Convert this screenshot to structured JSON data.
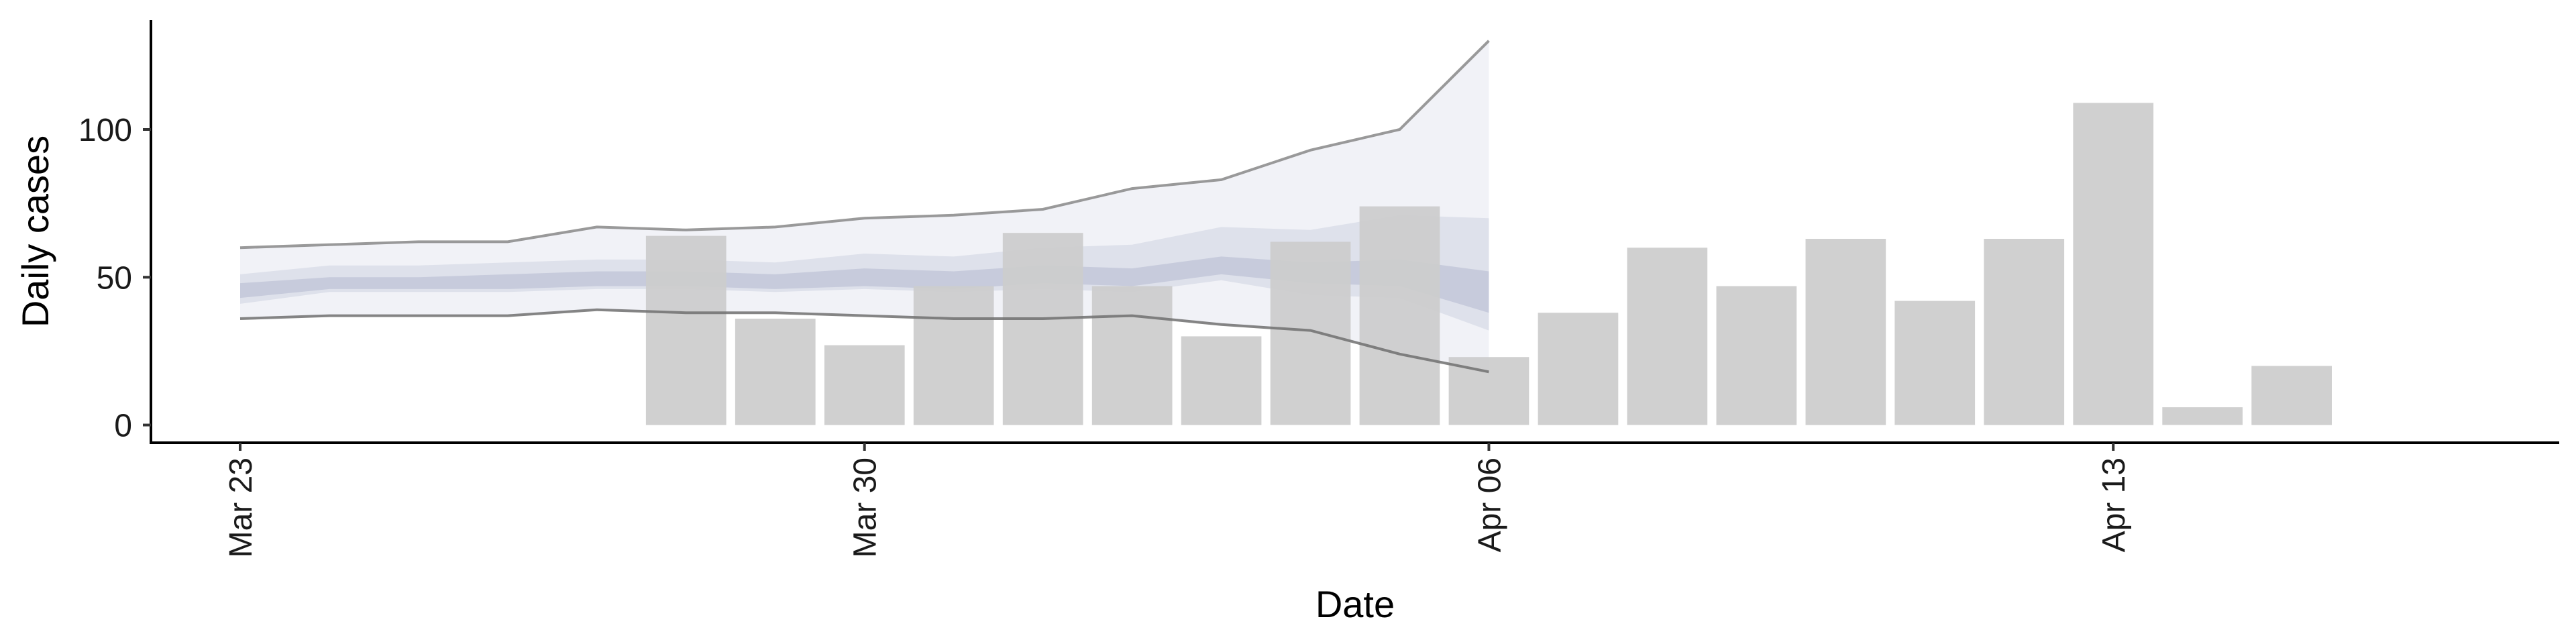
{
  "chart_data": {
    "type": "bar",
    "xlabel": "Date",
    "ylabel": "Daily cases",
    "grid": false,
    "legend": "none",
    "xlim": [
      "2020-03-22",
      "2020-04-18"
    ],
    "ylim": [
      -6,
      137
    ],
    "x_ticks": [
      {
        "date": "2020-03-23",
        "label": "Mar 23"
      },
      {
        "date": "2020-03-30",
        "label": "Mar 30"
      },
      {
        "date": "2020-04-06",
        "label": "Apr 06"
      },
      {
        "date": "2020-04-13",
        "label": "Apr 13"
      }
    ],
    "y_ticks": [
      {
        "value": 0,
        "label": "0"
      },
      {
        "value": 50,
        "label": "50"
      },
      {
        "value": 100,
        "label": "100"
      }
    ],
    "bars": {
      "color": "#cccccc",
      "points": [
        {
          "date": "2020-03-28",
          "value": 64
        },
        {
          "date": "2020-03-29",
          "value": 36
        },
        {
          "date": "2020-03-30",
          "value": 27
        },
        {
          "date": "2020-03-31",
          "value": 47
        },
        {
          "date": "2020-04-01",
          "value": 65
        },
        {
          "date": "2020-04-02",
          "value": 47
        },
        {
          "date": "2020-04-03",
          "value": 30
        },
        {
          "date": "2020-04-04",
          "value": 62
        },
        {
          "date": "2020-04-05",
          "value": 74
        },
        {
          "date": "2020-04-06",
          "value": 23
        },
        {
          "date": "2020-04-07",
          "value": 38
        },
        {
          "date": "2020-04-08",
          "value": 60
        },
        {
          "date": "2020-04-09",
          "value": 47
        },
        {
          "date": "2020-04-10",
          "value": 63
        },
        {
          "date": "2020-04-11",
          "value": 42
        },
        {
          "date": "2020-04-12",
          "value": 63
        },
        {
          "date": "2020-04-13",
          "value": 109
        },
        {
          "date": "2020-04-14",
          "value": 6
        },
        {
          "date": "2020-04-15",
          "value": 20
        }
      ]
    },
    "estimate": {
      "dates": [
        "2020-03-23",
        "2020-03-24",
        "2020-03-25",
        "2020-03-26",
        "2020-03-27",
        "2020-03-28",
        "2020-03-29",
        "2020-03-30",
        "2020-03-31",
        "2020-04-01",
        "2020-04-02",
        "2020-04-03",
        "2020-04-04",
        "2020-04-05",
        "2020-04-06"
      ],
      "outer_upper": [
        60,
        61,
        62,
        62,
        67,
        66,
        67,
        70,
        71,
        73,
        80,
        83,
        93,
        100,
        130
      ],
      "outer_lower": [
        36,
        37,
        37,
        37,
        39,
        38,
        38,
        37,
        36,
        36,
        37,
        34,
        32,
        24,
        18
      ],
      "mid_upper": [
        51,
        54,
        54,
        55,
        56,
        56,
        55,
        58,
        57,
        60,
        61,
        67,
        66,
        71,
        70
      ],
      "mid_lower": [
        41,
        45,
        45,
        45,
        46,
        46,
        45,
        46,
        45,
        46,
        45,
        49,
        44,
        43,
        32
      ],
      "inner_upper": [
        48,
        50,
        50,
        51,
        52,
        52,
        51,
        53,
        52,
        54,
        53,
        57,
        55,
        56,
        52
      ],
      "inner_lower": [
        43,
        46,
        46,
        46,
        47,
        47,
        46,
        47,
        46,
        48,
        47,
        51,
        48,
        47,
        38
      ],
      "colors": {
        "outer": "#eceef4",
        "mid": "#d6dae6",
        "inner": "#b8bdd2",
        "upper_line": "#888888",
        "lower_line": "#707070"
      }
    }
  }
}
